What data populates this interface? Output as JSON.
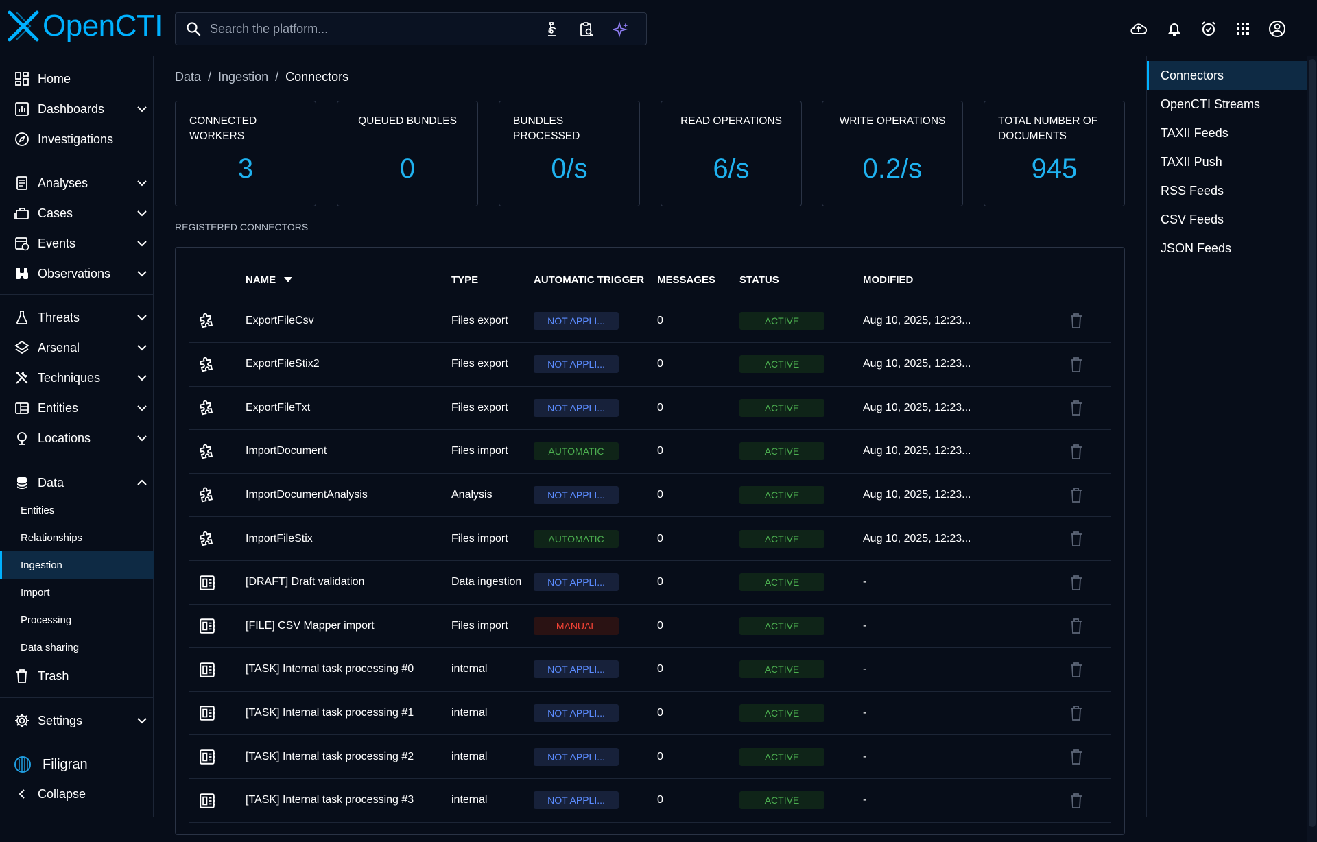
{
  "app": {
    "name": "OpenCTI"
  },
  "search": {
    "placeholder": "Search the platform..."
  },
  "nav": {
    "home": "Home",
    "dashboards": "Dashboards",
    "investigations": "Investigations",
    "analyses": "Analyses",
    "cases": "Cases",
    "events": "Events",
    "observations": "Observations",
    "threats": "Threats",
    "arsenal": "Arsenal",
    "techniques": "Techniques",
    "entities": "Entities",
    "locations": "Locations",
    "data": "Data",
    "data_sub": [
      "Entities",
      "Relationships",
      "Ingestion",
      "Import",
      "Processing",
      "Data sharing"
    ],
    "trash": "Trash",
    "settings": "Settings",
    "filigran": "Filigran",
    "collapse": "Collapse"
  },
  "breadcrumb": {
    "level1": "Data",
    "level2": "Ingestion",
    "current": "Connectors",
    "separator": "/"
  },
  "stats": [
    {
      "label": "Connected workers",
      "value": "3"
    },
    {
      "label": "Queued bundles",
      "value": "0"
    },
    {
      "label": "Bundles processed",
      "value": "0/s"
    },
    {
      "label": "Read operations",
      "value": "6/s"
    },
    {
      "label": "Write operations",
      "value": "0.2/s"
    },
    {
      "label": "Total number of documents",
      "value": "945"
    }
  ],
  "section": {
    "title": "Registered connectors"
  },
  "table": {
    "headers": {
      "name": "Name",
      "type": "Type",
      "trigger": "Automatic trigger",
      "messages": "Messages",
      "status": "Status",
      "modified": "Modified"
    },
    "rows": [
      {
        "icon": "puzzle-icon",
        "name": "ExportFileCsv",
        "type": "Files export",
        "trigger": "NOT APPLI...",
        "trigger_kind": "na",
        "messages": "0",
        "status": "ACTIVE",
        "modified": "Aug 10, 2025, 12:23..."
      },
      {
        "icon": "puzzle-icon",
        "name": "ExportFileStix2",
        "type": "Files export",
        "trigger": "NOT APPLI...",
        "trigger_kind": "na",
        "messages": "0",
        "status": "ACTIVE",
        "modified": "Aug 10, 2025, 12:23..."
      },
      {
        "icon": "puzzle-icon",
        "name": "ExportFileTxt",
        "type": "Files export",
        "trigger": "NOT APPLI...",
        "trigger_kind": "na",
        "messages": "0",
        "status": "ACTIVE",
        "modified": "Aug 10, 2025, 12:23..."
      },
      {
        "icon": "puzzle-icon",
        "name": "ImportDocument",
        "type": "Files import",
        "trigger": "AUTOMATIC",
        "trigger_kind": "auto",
        "messages": "0",
        "status": "ACTIVE",
        "modified": "Aug 10, 2025, 12:23..."
      },
      {
        "icon": "puzzle-icon",
        "name": "ImportDocumentAnalysis",
        "type": "Analysis",
        "trigger": "NOT APPLI...",
        "trigger_kind": "na",
        "messages": "0",
        "status": "ACTIVE",
        "modified": "Aug 10, 2025, 12:23..."
      },
      {
        "icon": "puzzle-icon",
        "name": "ImportFileStix",
        "type": "Files import",
        "trigger": "AUTOMATIC",
        "trigger_kind": "auto",
        "messages": "0",
        "status": "ACTIVE",
        "modified": "Aug 10, 2025, 12:23..."
      },
      {
        "icon": "builtin-icon",
        "name": "[DRAFT] Draft validation",
        "type": "Data ingestion",
        "trigger": "NOT APPLI...",
        "trigger_kind": "na",
        "messages": "0",
        "status": "ACTIVE",
        "modified": "-"
      },
      {
        "icon": "builtin-icon",
        "name": "[FILE] CSV Mapper import",
        "type": "Files import",
        "trigger": "MANUAL",
        "trigger_kind": "manual",
        "messages": "0",
        "status": "ACTIVE",
        "modified": "-"
      },
      {
        "icon": "builtin-icon",
        "name": "[TASK] Internal task processing #0",
        "type": "internal",
        "trigger": "NOT APPLI...",
        "trigger_kind": "na",
        "messages": "0",
        "status": "ACTIVE",
        "modified": "-"
      },
      {
        "icon": "builtin-icon",
        "name": "[TASK] Internal task processing #1",
        "type": "internal",
        "trigger": "NOT APPLI...",
        "trigger_kind": "na",
        "messages": "0",
        "status": "ACTIVE",
        "modified": "-"
      },
      {
        "icon": "builtin-icon",
        "name": "[TASK] Internal task processing #2",
        "type": "internal",
        "trigger": "NOT APPLI...",
        "trigger_kind": "na",
        "messages": "0",
        "status": "ACTIVE",
        "modified": "-"
      },
      {
        "icon": "builtin-icon",
        "name": "[TASK] Internal task processing #3",
        "type": "internal",
        "trigger": "NOT APPLI...",
        "trigger_kind": "na",
        "messages": "0",
        "status": "ACTIVE",
        "modified": "-"
      }
    ]
  },
  "right_nav": [
    "Connectors",
    "OpenCTI Streams",
    "TAXII Feeds",
    "TAXII Push",
    "RSS Feeds",
    "CSV Feeds",
    "JSON Feeds"
  ],
  "colors": {
    "accent": "#00b1ff",
    "stat_value": "#1fb2f0",
    "active_green": "#4caf50",
    "manual_red": "#f44336",
    "na_blue": "#5b8cff",
    "background": "#070d19"
  }
}
